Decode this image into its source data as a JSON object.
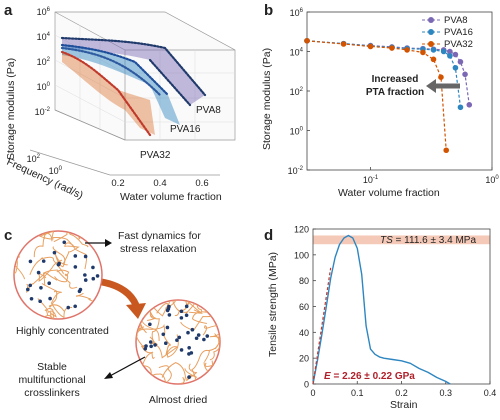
{
  "panels": {
    "a": {
      "label": "a",
      "ylabel": "Storage modulus (Pa)",
      "xlabel": "Water volume fraction",
      "zlabel": "Frequency (rad/s)",
      "yticks": [
        "10^6",
        "10^4",
        "10^2",
        "10^0",
        "10^-2"
      ],
      "xticks": [
        "0.2",
        "0.4",
        "0.6"
      ],
      "zticks": [
        "10^2",
        "10^0"
      ],
      "series_labels": [
        "PVA8",
        "PVA16",
        "PVA32"
      ]
    },
    "b": {
      "label": "b",
      "ylabel": "Storage modulus (Pa)",
      "xlabel": "Water volume fraction",
      "annotation_line1": "Increased",
      "annotation_line2": "PTA fraction"
    },
    "c": {
      "label": "c",
      "text_fast_line1": "Fast dynamics for",
      "text_fast_line2": "stress relaxation",
      "text_concentrated": "Highly concentrated",
      "text_stable_line1": "Stable",
      "text_stable_line2": "multifunctional",
      "text_stable_line3": "crosslinkers",
      "text_dried": "Almost dried"
    },
    "d": {
      "label": "d",
      "ts_prefix": "TS",
      "ts_value": " = 111.6 ± 3.4 MPa",
      "e_prefix": "E",
      "e_value": " = 2.26 ± 0.22 GPa"
    }
  },
  "colors": {
    "pva8": "#7b68b5",
    "pva16": "#2e86c1",
    "pva32": "#d35400",
    "fiber": "#e8a060",
    "circle": "#e0746a",
    "node": "#1f3a6b",
    "arrow": "#c8581f",
    "band": "#f5c9b8"
  },
  "chart_data": [
    {
      "type": "line",
      "panel": "b",
      "xlabel": "Water volume fraction",
      "ylabel": "Storage modulus (Pa)",
      "xscale": "log",
      "yscale": "log",
      "xlim": [
        0.03,
        1
      ],
      "ylim": [
        0.01,
        1000000
      ],
      "xticks": [
        0.1,
        1
      ],
      "yticks": [
        0.01,
        1,
        100,
        10000,
        1000000
      ],
      "legend_position": "top-right",
      "series": [
        {
          "name": "PVA8",
          "color": "#7b68b5",
          "x": [
            0.03,
            0.06,
            0.1,
            0.15,
            0.2,
            0.27,
            0.33,
            0.4,
            0.45,
            0.5,
            0.55,
            0.6,
            0.65
          ],
          "y": [
            35000,
            25000,
            20000,
            17000,
            15000,
            14000,
            13000,
            12000,
            10000,
            7000,
            3000,
            700,
            20
          ]
        },
        {
          "name": "PVA16",
          "color": "#2e86c1",
          "x": [
            0.03,
            0.06,
            0.1,
            0.15,
            0.2,
            0.27,
            0.33,
            0.4,
            0.45,
            0.5,
            0.55
          ],
          "y": [
            35000,
            25000,
            19000,
            16000,
            14000,
            13000,
            12000,
            10000,
            6000,
            1500,
            15
          ]
        },
        {
          "name": "PVA32",
          "color": "#d35400",
          "x": [
            0.03,
            0.06,
            0.1,
            0.15,
            0.2,
            0.27,
            0.33,
            0.38,
            0.42
          ],
          "y": [
            35000,
            24000,
            18000,
            15000,
            12000,
            9000,
            4000,
            500,
            0.1
          ]
        }
      ]
    },
    {
      "type": "line",
      "panel": "d",
      "xlabel": "Strain",
      "ylabel": "Tensile strength (MPa)",
      "xlim": [
        0,
        0.4
      ],
      "ylim": [
        0,
        120
      ],
      "xticks": [
        0,
        0.1,
        0.2,
        0.3,
        0.4
      ],
      "yticks": [
        0,
        20,
        40,
        60,
        80,
        100,
        120
      ],
      "series": [
        {
          "name": "",
          "color": "#2e86c1",
          "x": [
            0,
            0.01,
            0.02,
            0.03,
            0.04,
            0.05,
            0.06,
            0.07,
            0.08,
            0.09,
            0.1,
            0.11,
            0.12,
            0.13,
            0.14,
            0.15,
            0.16,
            0.18,
            0.2,
            0.22,
            0.24,
            0.26,
            0.28,
            0.3,
            0.31
          ],
          "y": [
            0,
            18,
            38,
            60,
            82,
            98,
            108,
            113,
            115,
            113,
            105,
            85,
            45,
            27,
            23,
            21,
            20,
            19,
            18,
            16,
            12,
            9,
            5,
            2,
            0
          ]
        },
        {
          "name": "",
          "color": "#c0392b",
          "style": "dashed",
          "x": [
            0,
            0.04
          ],
          "y": [
            0,
            90
          ]
        }
      ],
      "bands": [
        {
          "y_center": 111.6,
          "half_width": 3.4
        }
      ]
    }
  ]
}
